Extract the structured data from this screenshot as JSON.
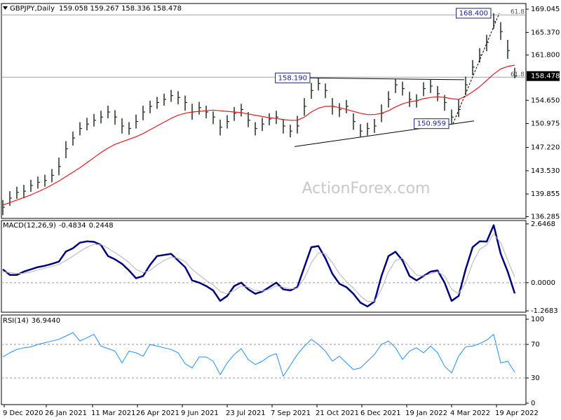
{
  "chart_data": [
    {
      "type": "ohlc",
      "title": "GBPJPY,Daily",
      "subtitle": "159.058 159.267 158.336 158.478",
      "watermark": "ActionForex.com",
      "x": [
        0,
        5,
        10,
        15,
        20,
        25,
        30,
        35,
        40,
        45,
        50,
        55,
        60,
        65,
        70,
        75,
        80,
        85,
        90,
        95,
        100,
        105,
        110,
        115,
        120,
        125,
        130,
        135,
        140,
        145,
        150,
        155,
        160,
        165,
        170,
        175,
        180,
        185,
        190,
        195,
        200,
        205,
        210,
        215,
        220,
        225,
        230,
        235,
        240,
        245,
        250,
        255,
        260,
        265,
        270,
        275,
        280,
        285,
        290,
        295,
        300,
        305,
        310,
        315,
        320,
        325,
        330,
        335,
        340,
        345,
        350,
        355,
        360,
        365
      ],
      "xlim": [
        -1,
        373
      ],
      "high": [
        138.9,
        140.3,
        141.0,
        141.3,
        142.1,
        142.6,
        142.9,
        143.8,
        145.6,
        148.2,
        149.7,
        151.2,
        151.9,
        152.5,
        153.0,
        153.8,
        153.1,
        151.8,
        151.2,
        152.4,
        153.8,
        154.6,
        155.2,
        155.7,
        156.3,
        156.1,
        155.4,
        154.1,
        154.4,
        153.8,
        152.9,
        151.6,
        152.3,
        153.6,
        154.1,
        152.8,
        151.2,
        151.9,
        152.6,
        153.0,
        151.7,
        150.8,
        152.2,
        155.0,
        157.4,
        158.19,
        157.3,
        155.0,
        154.2,
        154.7,
        152.6,
        150.9,
        151.1,
        151.7,
        154.0,
        156.1,
        158.0,
        157.6,
        156.0,
        155.6,
        157.5,
        157.9,
        156.9,
        155.5,
        153.2,
        154.8,
        158.4,
        161.0,
        162.9,
        165.0,
        168.4,
        167.0,
        164.2,
        159.8
      ],
      "low": [
        136.5,
        138.0,
        139.1,
        139.2,
        140.2,
        140.7,
        141.0,
        141.7,
        142.8,
        145.5,
        147.5,
        149.1,
        149.9,
        150.5,
        151.0,
        151.8,
        150.8,
        149.4,
        149.2,
        150.2,
        151.5,
        152.6,
        153.3,
        153.8,
        154.4,
        154.0,
        153.0,
        151.6,
        152.4,
        151.8,
        150.9,
        149.1,
        150.2,
        151.4,
        152.1,
        150.4,
        149.1,
        149.8,
        150.7,
        150.9,
        149.4,
        148.8,
        149.4,
        152.2,
        154.9,
        156.2,
        155.0,
        152.4,
        152.0,
        152.6,
        150.0,
        148.9,
        149.1,
        149.5,
        151.2,
        153.5,
        155.8,
        155.4,
        153.6,
        153.5,
        155.3,
        155.8,
        154.5,
        153.0,
        150.959,
        152.0,
        155.5,
        158.6,
        160.6,
        162.4,
        165.9,
        164.2,
        161.2,
        158.1
      ],
      "close": [
        137.76,
        139.2,
        140.1,
        140.3,
        141.2,
        141.7,
        142,
        142.8,
        144.2,
        147,
        148.7,
        150.2,
        150.9,
        151.5,
        152,
        152.8,
        152,
        150.6,
        150.2,
        151.3,
        152.8,
        153.7,
        154.3,
        154.8,
        155.4,
        155.1,
        154.3,
        152.8,
        153.5,
        152.8,
        152,
        150.4,
        151.3,
        152.6,
        153.2,
        151.5,
        150.2,
        150.9,
        151.7,
        152,
        150.6,
        149.8,
        150.6,
        153.7,
        156.2,
        157.3,
        156.2,
        153.7,
        153.2,
        153.7,
        151.3,
        149.8,
        150.2,
        150.6,
        152.6,
        154.8,
        157.1,
        156.5,
        154.8,
        154.6,
        156.5,
        156.9,
        155.7,
        154.3,
        152,
        153.2,
        157.1,
        159.9,
        161.8,
        163.8,
        167.1,
        165.5,
        162.5,
        158.478
      ],
      "color": "#1f3320",
      "series": [
        {
          "color": "#e41a1c",
          "width": 1.2,
          "values": [
            138.1,
            138.5,
            138.9,
            139.3,
            139.7,
            140.2,
            140.7,
            141.3,
            141.9,
            142.6,
            143.3,
            144.0,
            144.8,
            145.6,
            146.4,
            147.1,
            147.7,
            148.1,
            148.5,
            148.9,
            149.4,
            150.0,
            150.6,
            151.2,
            151.8,
            152.3,
            152.6,
            152.8,
            152.9,
            153.0,
            153.1,
            153.0,
            152.9,
            152.8,
            152.7,
            152.5,
            152.3,
            152.1,
            151.9,
            151.8,
            151.6,
            151.5,
            151.5,
            152.0,
            152.8,
            153.4,
            153.7,
            153.7,
            153.5,
            153.2,
            152.9,
            152.6,
            152.4,
            152.4,
            152.6,
            153.0,
            153.6,
            154.1,
            154.4,
            154.6,
            154.9,
            155.1,
            155.2,
            155.1,
            154.9,
            154.8,
            155.3,
            156.0,
            156.8,
            157.8,
            158.8,
            159.6,
            160.0,
            160.2
          ]
        }
      ],
      "ylim": [
        136.0,
        169.94
      ],
      "yticks": [
        169.045,
        {
          "value": 165.37,
          "label": "165.370"
        },
        {
          "value": 161.8,
          "label": "161.800"
        },
        {
          "value": 154.65,
          "label": "154.650"
        },
        150.975,
        {
          "value": 147.22,
          "label": "147.220"
        },
        {
          "value": 143.53,
          "label": "143.530"
        },
        139.855,
        136.285
      ],
      "fib_levels": [
        {
          "value": 168.15,
          "label": "61.8"
        },
        {
          "value": 158.3,
          "label": "61.8"
        }
      ],
      "trendlines": [
        {
          "x": [
            208,
            336
          ],
          "y": [
            147.35,
            151.4
          ]
        },
        {
          "x": [
            219,
            329
          ],
          "y": [
            158.19,
            157.9
          ]
        },
        {
          "x": [
            321,
            354
          ],
          "y": [
            150.959,
            168.4
          ],
          "dashed": true
        }
      ],
      "annotations": [
        {
          "x": 219,
          "value": 158.19,
          "label": "158.190"
        },
        {
          "x": 318,
          "value": 150.959,
          "label": "150.959"
        },
        {
          "x": 348,
          "value": 168.4,
          "label": "168.400"
        }
      ]
    },
    {
      "type": "line",
      "title": "MACD(12,26,9)",
      "x": [
        0,
        5,
        10,
        15,
        20,
        25,
        30,
        35,
        40,
        45,
        50,
        55,
        60,
        65,
        70,
        75,
        80,
        85,
        90,
        95,
        100,
        105,
        110,
        115,
        120,
        125,
        130,
        135,
        140,
        145,
        150,
        155,
        160,
        165,
        170,
        175,
        180,
        185,
        190,
        195,
        200,
        205,
        210,
        215,
        220,
        225,
        230,
        235,
        240,
        245,
        250,
        255,
        260,
        265,
        270,
        275,
        280,
        285,
        290,
        295,
        300,
        305,
        310,
        315,
        320,
        325,
        330,
        335,
        340,
        345,
        350,
        355,
        360,
        365
      ],
      "xlim": [
        -1,
        373
      ],
      "series": [
        {
          "color": "#00007f",
          "width": 2.5,
          "values": [
            0.6,
            0.35,
            0.35,
            0.5,
            0.6,
            0.7,
            0.76,
            0.85,
            0.95,
            1.4,
            1.55,
            1.8,
            1.86,
            1.84,
            1.7,
            1.2,
            1.05,
            0.85,
            0.55,
            0.2,
            0.3,
            0.8,
            1.2,
            1.25,
            1.3,
            1.0,
            0.7,
            0.1,
            0.0,
            -0.15,
            -0.35,
            -0.82,
            -0.6,
            -0.15,
            0.0,
            -0.3,
            -0.5,
            -0.4,
            -0.2,
            0.0,
            -0.3,
            -0.35,
            -0.2,
            0.7,
            1.6,
            1.65,
            1.1,
            0.4,
            -0.05,
            -0.2,
            -0.5,
            -0.9,
            -1.07,
            -0.85,
            0.3,
            1.2,
            1.39,
            1.0,
            0.3,
            0.1,
            0.3,
            0.5,
            0.55,
            0.0,
            -0.82,
            -0.6,
            0.6,
            1.6,
            1.86,
            1.85,
            2.59,
            1.3,
            0.5,
            -0.4834
          ]
        },
        {
          "color": "#b4b4b4",
          "width": 1,
          "values": [
            0.5,
            0.45,
            0.42,
            0.42,
            0.48,
            0.57,
            0.65,
            0.73,
            0.82,
            1.0,
            1.2,
            1.4,
            1.6,
            1.72,
            1.72,
            1.55,
            1.35,
            1.15,
            0.9,
            0.6,
            0.45,
            0.55,
            0.8,
            1.0,
            1.15,
            1.1,
            0.95,
            0.6,
            0.35,
            0.1,
            -0.1,
            -0.4,
            -0.5,
            -0.35,
            -0.15,
            -0.2,
            -0.35,
            -0.38,
            -0.3,
            -0.15,
            -0.2,
            -0.28,
            -0.25,
            0.2,
            0.9,
            1.35,
            1.3,
            0.9,
            0.4,
            0.05,
            -0.25,
            -0.6,
            -0.85,
            -0.85,
            -0.3,
            0.5,
            1.0,
            1.1,
            0.7,
            0.35,
            0.3,
            0.4,
            0.5,
            0.3,
            -0.3,
            -0.5,
            0.0,
            0.9,
            1.5,
            1.7,
            2.2,
            1.8,
            1.0,
            0.2448
          ]
        }
      ],
      "ylim": [
        -1.33,
        2.8
      ],
      "yticks": [
        2.6468,
        {
          "value": 0,
          "label": "0.0000"
        },
        -1.2683
      ],
      "levels": [
        0
      ]
    },
    {
      "type": "line",
      "title": "RSI(14)",
      "subtitle": "36.9440",
      "x": [
        0,
        5,
        10,
        15,
        20,
        25,
        30,
        35,
        40,
        45,
        50,
        55,
        60,
        65,
        70,
        75,
        80,
        85,
        90,
        95,
        100,
        105,
        110,
        115,
        120,
        125,
        130,
        135,
        140,
        145,
        150,
        155,
        160,
        165,
        170,
        175,
        180,
        185,
        190,
        195,
        200,
        205,
        210,
        215,
        220,
        225,
        230,
        235,
        240,
        245,
        250,
        255,
        260,
        265,
        270,
        275,
        280,
        285,
        290,
        295,
        300,
        305,
        310,
        315,
        320,
        325,
        330,
        335,
        340,
        345,
        350,
        355,
        360,
        365
      ],
      "xlim": [
        -1,
        373
      ],
      "series": [
        {
          "color": "#1e90ff",
          "width": 1,
          "values": [
            55,
            60,
            64,
            66,
            67,
            70,
            72,
            74,
            76,
            80,
            84,
            74,
            78,
            82,
            68,
            65,
            62,
            48,
            62,
            60,
            56,
            70,
            68,
            66,
            64,
            60,
            47,
            42,
            55,
            55,
            50,
            34,
            48,
            58,
            65,
            52,
            46,
            50,
            56,
            59,
            32,
            45,
            58,
            68,
            76,
            70,
            62,
            50,
            56,
            48,
            40,
            42,
            50,
            58,
            70,
            74,
            66,
            52,
            62,
            66,
            60,
            68,
            60,
            44,
            36,
            56,
            67,
            68,
            71,
            75,
            82,
            48,
            50,
            36.944
          ]
        }
      ],
      "ylim": [
        -1.7,
        105
      ],
      "yticks": [
        100,
        70,
        30,
        0
      ],
      "levels": [
        70,
        30
      ],
      "xticks": [
        {
          "value": 1,
          "label": "9 Dec 2020"
        },
        {
          "value": 31,
          "label": "26 Jan 2021"
        },
        {
          "value": 64,
          "label": "11 Mar 2021"
        },
        {
          "value": 96,
          "label": "26 Apr 2021"
        },
        {
          "value": 128,
          "label": "9 Jun 2021"
        },
        {
          "value": 160,
          "label": "23 Jul 2021"
        },
        {
          "value": 192,
          "label": "7 Sep 2021"
        },
        {
          "value": 224,
          "label": "21 Oct 2021"
        },
        {
          "value": 256,
          "label": "6 Dec 2021"
        },
        {
          "value": 288,
          "label": "19 Jan 2022"
        },
        {
          "value": 320,
          "label": "4 Mar 2022"
        },
        {
          "value": 352,
          "label": "19 Apr 2022"
        }
      ]
    }
  ]
}
